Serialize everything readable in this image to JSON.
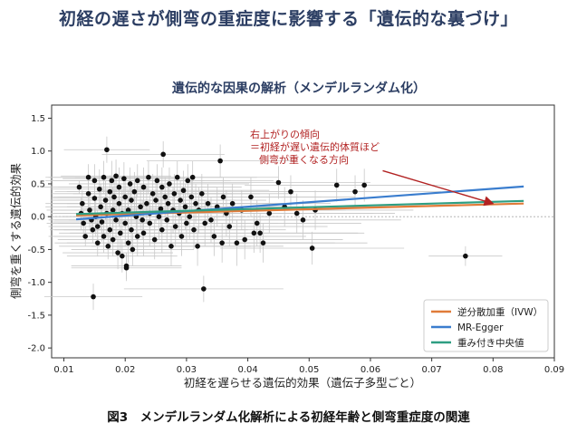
{
  "page": {
    "title": "初経の遅さが側弯の重症度に影響する「遺伝的な裏づけ」",
    "caption": "図3　メンデルランダム化解析による初経年齢と側弯重症度の関連"
  },
  "chart_data": {
    "type": "scatter",
    "title": "遺伝的な因果の解析（メンデルランダム化）",
    "xlabel": "初経を遅らせる遺伝的効果（遺伝子多型ごと）",
    "ylabel": "側弯を重くする遺伝的効果",
    "xlim": [
      0.008,
      0.09
    ],
    "ylim": [
      -2.15,
      1.7
    ],
    "xticks": [
      "0.01",
      "0.02",
      "0.03",
      "0.04",
      "0.05",
      "0.06",
      "0.07",
      "0.08",
      "0.09"
    ],
    "yticks": [
      "1.5",
      "1.0",
      "0.5",
      "0.0",
      "-0.5",
      "-1.0",
      "-1.5",
      "-2.0"
    ],
    "grid": false,
    "legend_position": "bottom-right",
    "colors": {
      "point": "#111111",
      "errorbar": "#c8c8c8",
      "zero_line": "#aaaaaa",
      "title": "#2c3e63",
      "annotation": "#b22222",
      "ivw": "#e07b39",
      "egger": "#3a7dce",
      "median": "#2e9e82"
    },
    "series_lines": [
      {
        "name": "逆分散加重（IVW）",
        "key": "ivw",
        "x": [
          0.012,
          0.085
        ],
        "y": [
          0.02,
          0.2
        ]
      },
      {
        "name": "MR-Egger",
        "key": "egger",
        "x": [
          0.012,
          0.085
        ],
        "y": [
          -0.04,
          0.46
        ]
      },
      {
        "name": "重み付き中央値",
        "key": "median",
        "x": [
          0.012,
          0.085
        ],
        "y": [
          0.04,
          0.24
        ]
      }
    ],
    "annotation": {
      "lines": [
        "右上がりの傾向",
        "＝初経が遅い遺伝的体質ほど",
        "側弯が重くなる方向"
      ],
      "arrow_from": [
        0.062,
        0.7
      ],
      "arrow_to": [
        0.08,
        0.2
      ]
    },
    "points": [
      [
        0.0125,
        0.45,
        0.006,
        0.1
      ],
      [
        0.013,
        0.2,
        0.006,
        0.2
      ],
      [
        0.0128,
        0.05,
        0.005,
        0.25
      ],
      [
        0.0132,
        -0.1,
        0.006,
        0.2
      ],
      [
        0.0135,
        -0.3,
        0.006,
        0.15
      ],
      [
        0.014,
        0.6,
        0.007,
        0.2
      ],
      [
        0.014,
        0.35,
        0.006,
        0.25
      ],
      [
        0.0142,
        0.1,
        0.007,
        0.3
      ],
      [
        0.0145,
        -0.05,
        0.007,
        0.2
      ],
      [
        0.0147,
        -0.2,
        0.007,
        0.2
      ],
      [
        0.015,
        0.55,
        0.008,
        0.25
      ],
      [
        0.015,
        0.28,
        0.007,
        0.3
      ],
      [
        0.0152,
        0.0,
        0.008,
        0.3
      ],
      [
        0.0155,
        -0.15,
        0.008,
        0.25
      ],
      [
        0.0155,
        -0.4,
        0.007,
        0.2
      ],
      [
        0.0158,
        0.42,
        0.008,
        0.3
      ],
      [
        0.016,
        0.15,
        0.009,
        0.35
      ],
      [
        0.0162,
        -0.08,
        0.008,
        0.3
      ],
      [
        0.0165,
        0.6,
        0.009,
        0.25
      ],
      [
        0.0165,
        -0.3,
        0.008,
        0.25
      ],
      [
        0.0168,
        0.25,
        0.009,
        0.3
      ],
      [
        0.017,
        1.02,
        0.007,
        0.2
      ],
      [
        0.017,
        0.05,
        0.009,
        0.35
      ],
      [
        0.0172,
        -0.45,
        0.008,
        0.2
      ],
      [
        0.0175,
        0.38,
        0.009,
        0.25
      ],
      [
        0.0175,
        -0.2,
        0.009,
        0.3
      ],
      [
        0.0178,
        0.55,
        0.01,
        0.3
      ],
      [
        0.018,
        0.1,
        0.01,
        0.35
      ],
      [
        0.018,
        -0.35,
        0.009,
        0.25
      ],
      [
        0.0182,
        0.3,
        0.01,
        0.3
      ],
      [
        0.0185,
        -0.05,
        0.01,
        0.3
      ],
      [
        0.0185,
        0.62,
        0.009,
        0.25
      ],
      [
        0.0188,
        -0.55,
        0.009,
        0.25
      ],
      [
        0.019,
        0.2,
        0.011,
        0.35
      ],
      [
        0.019,
        0.45,
        0.01,
        0.3
      ],
      [
        0.0192,
        -0.25,
        0.01,
        0.3
      ],
      [
        0.0195,
        0.05,
        0.011,
        0.35
      ],
      [
        0.0195,
        -0.6,
        0.009,
        0.25
      ],
      [
        0.0198,
        0.58,
        0.01,
        0.25
      ],
      [
        0.02,
        0.3,
        0.011,
        0.3
      ],
      [
        0.02,
        -0.1,
        0.011,
        0.35
      ],
      [
        0.0202,
        -0.75,
        0.009,
        0.2
      ],
      [
        0.0205,
        0.1,
        0.011,
        0.3
      ],
      [
        0.0205,
        -0.4,
        0.01,
        0.3
      ],
      [
        0.0208,
        0.5,
        0.01,
        0.25
      ],
      [
        0.021,
        -0.2,
        0.011,
        0.35
      ],
      [
        0.021,
        0.25,
        0.012,
        0.3
      ],
      [
        0.0212,
        -0.5,
        0.01,
        0.25
      ],
      [
        0.0215,
        0.38,
        0.011,
        0.3
      ],
      [
        0.0218,
        0.0,
        0.012,
        0.35
      ],
      [
        0.022,
        0.55,
        0.011,
        0.25
      ],
      [
        0.022,
        -0.3,
        0.011,
        0.3
      ],
      [
        0.0225,
        0.15,
        0.012,
        0.35
      ],
      [
        0.0228,
        -0.05,
        0.012,
        0.3
      ],
      [
        0.023,
        0.45,
        0.012,
        0.3
      ],
      [
        0.023,
        -0.25,
        0.012,
        0.35
      ],
      [
        0.0235,
        0.2,
        0.013,
        0.3
      ],
      [
        0.0238,
        0.6,
        0.012,
        0.25
      ],
      [
        0.024,
        -0.1,
        0.013,
        0.35
      ],
      [
        0.024,
        0.05,
        0.013,
        0.3
      ],
      [
        0.0245,
        0.35,
        0.013,
        0.3
      ],
      [
        0.0248,
        -0.35,
        0.012,
        0.3
      ],
      [
        0.025,
        0.25,
        0.013,
        0.35
      ],
      [
        0.0252,
        0.55,
        0.012,
        0.25
      ],
      [
        0.0255,
        0.0,
        0.014,
        0.35
      ],
      [
        0.0258,
        0.12,
        0.013,
        0.3
      ],
      [
        0.026,
        0.45,
        0.013,
        0.3
      ],
      [
        0.026,
        -0.2,
        0.014,
        0.35
      ],
      [
        0.0262,
        0.95,
        0.01,
        0.2
      ],
      [
        0.0265,
        0.3,
        0.014,
        0.3
      ],
      [
        0.0268,
        -0.05,
        0.014,
        0.35
      ],
      [
        0.027,
        0.2,
        0.014,
        0.3
      ],
      [
        0.0272,
        0.5,
        0.013,
        0.25
      ],
      [
        0.0275,
        -0.45,
        0.013,
        0.3
      ],
      [
        0.0278,
        0.1,
        0.014,
        0.35
      ],
      [
        0.028,
        0.35,
        0.014,
        0.3
      ],
      [
        0.0282,
        -0.15,
        0.014,
        0.3
      ],
      [
        0.0285,
        0.6,
        0.013,
        0.25
      ],
      [
        0.0288,
        0.05,
        0.015,
        0.35
      ],
      [
        0.029,
        0.25,
        0.014,
        0.3
      ],
      [
        0.0292,
        -0.3,
        0.014,
        0.3
      ],
      [
        0.0295,
        0.4,
        0.014,
        0.3
      ],
      [
        0.0298,
        0.15,
        0.015,
        0.35
      ],
      [
        0.03,
        -0.1,
        0.015,
        0.3
      ],
      [
        0.0302,
        0.55,
        0.014,
        0.25
      ],
      [
        0.0305,
        0.0,
        0.015,
        0.35
      ],
      [
        0.0308,
        0.3,
        0.015,
        0.3
      ],
      [
        0.031,
        0.6,
        0.014,
        0.25
      ],
      [
        0.0312,
        -0.2,
        0.015,
        0.3
      ],
      [
        0.0315,
        0.2,
        0.015,
        0.3
      ],
      [
        0.0318,
        -0.45,
        0.014,
        0.3
      ],
      [
        0.032,
        0.1,
        0.016,
        0.35
      ],
      [
        0.0325,
        0.35,
        0.015,
        0.3
      ],
      [
        0.033,
        -0.1,
        0.016,
        0.35
      ],
      [
        0.0335,
        0.2,
        0.016,
        0.3
      ],
      [
        0.034,
        -0.05,
        0.016,
        0.35
      ],
      [
        0.0345,
        -0.3,
        0.015,
        0.3
      ],
      [
        0.035,
        0.15,
        0.016,
        0.3
      ],
      [
        0.0355,
        0.85,
        0.012,
        0.25
      ],
      [
        0.0358,
        -0.4,
        0.015,
        0.3
      ],
      [
        0.036,
        0.3,
        0.016,
        0.3
      ],
      [
        0.0365,
        0.05,
        0.016,
        0.35
      ],
      [
        0.037,
        -0.15,
        0.016,
        0.3
      ],
      [
        0.0375,
        0.2,
        0.016,
        0.3
      ],
      [
        0.0382,
        -0.4,
        0.016,
        0.35
      ],
      [
        0.039,
        0.1,
        0.017,
        0.3
      ],
      [
        0.0395,
        -0.35,
        0.016,
        0.3
      ],
      [
        0.0405,
        0.3,
        0.017,
        0.3
      ],
      [
        0.041,
        -0.25,
        0.017,
        0.3
      ],
      [
        0.0415,
        -0.1,
        0.017,
        0.35
      ],
      [
        0.042,
        -0.25,
        0.017,
        0.3
      ],
      [
        0.0425,
        -0.4,
        0.017,
        0.3
      ],
      [
        0.0435,
        0.05,
        0.017,
        0.3
      ],
      [
        0.045,
        0.52,
        0.015,
        0.25
      ],
      [
        0.046,
        0.15,
        0.016,
        0.3
      ],
      [
        0.047,
        0.38,
        0.016,
        0.25
      ],
      [
        0.048,
        0.05,
        0.016,
        0.3
      ],
      [
        0.049,
        -0.05,
        0.016,
        0.3
      ],
      [
        0.0505,
        -0.48,
        0.015,
        0.25
      ],
      [
        0.051,
        0.1,
        0.016,
        0.3
      ],
      [
        0.0545,
        0.48,
        0.015,
        0.25
      ],
      [
        0.0575,
        0.38,
        0.014,
        0.25
      ],
      [
        0.059,
        0.48,
        0.014,
        0.25
      ],
      [
        0.0328,
        -1.1,
        0.013,
        0.2
      ],
      [
        0.0148,
        -1.22,
        0.008,
        0.2
      ],
      [
        0.0202,
        -0.78,
        0.009,
        0.2
      ],
      [
        0.0755,
        -0.6,
        0.006,
        0.15
      ]
    ]
  }
}
